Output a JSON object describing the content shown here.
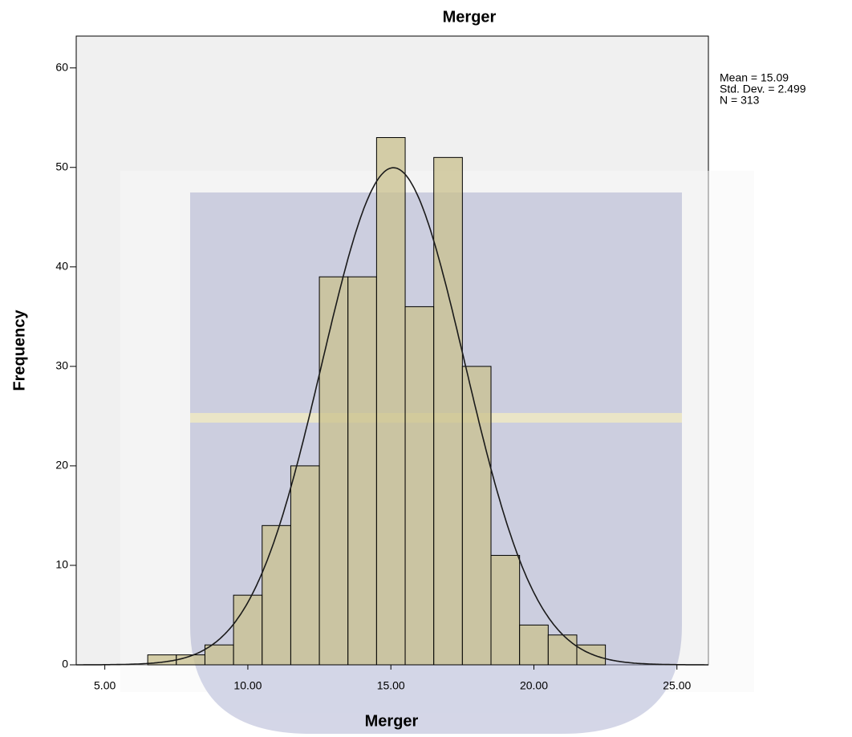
{
  "chart_data": {
    "type": "histogram",
    "title": "Merger",
    "x_label": "Merger",
    "y_label": "Frequency",
    "bins": [
      6.5,
      7.5,
      8.5,
      9.5,
      10.5,
      11.5,
      12.5,
      13.5,
      14.5,
      15.5,
      16.5,
      17.5,
      18.5,
      19.5,
      20.5,
      21.5,
      22.5
    ],
    "values": [
      1,
      1,
      2,
      7,
      14,
      20,
      39,
      39,
      53,
      36,
      51,
      30,
      11,
      4,
      3,
      2
    ],
    "color": "#c9c08e",
    "curve_color": "#1a1a1a",
    "xlim": [
      4,
      26.1
    ],
    "ylim": [
      0,
      63.2
    ],
    "xticks": [
      {
        "value": 5,
        "label": "5.00"
      },
      {
        "value": 10,
        "label": "10.00"
      },
      {
        "value": 15,
        "label": "15.00"
      },
      {
        "value": 20,
        "label": "20.00"
      },
      {
        "value": 25,
        "label": "25.00"
      }
    ],
    "yticks": [
      0,
      10,
      20,
      30,
      40,
      50,
      60
    ],
    "stats": [
      {
        "value": 15.09,
        "label": "Mean = 15.09"
      },
      {
        "value": 2.499,
        "label": "Std. Dev. = 2.499"
      },
      {
        "value": 313,
        "label": "N = 313"
      }
    ]
  }
}
